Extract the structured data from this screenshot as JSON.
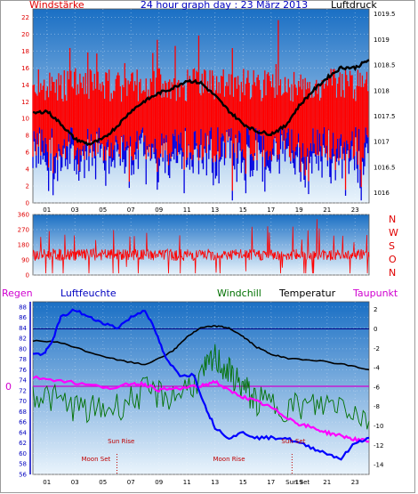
{
  "chart_data": [
    {
      "type": "line",
      "title": "24 hour graph day : 23 März 2013",
      "left_label": "Windstärke",
      "right_label": "Luftdruck",
      "x_ticks": [
        "01",
        "03",
        "05",
        "07",
        "09",
        "11",
        "13",
        "15",
        "17",
        "19",
        "21",
        "23"
      ],
      "y_left_ticks": [
        "0",
        "2",
        "4",
        "6",
        "8",
        "10",
        "12",
        "14",
        "16",
        "18",
        "20",
        "22"
      ],
      "y_left_range": [
        0,
        23
      ],
      "y_right_ticks": [
        "1016",
        "1016.5",
        "1017",
        "1017.5",
        "1018",
        "1018.5",
        "1019",
        "1019.5"
      ],
      "y_right_range": [
        1015.8,
        1019.6
      ],
      "pressure": [
        {
          "h": 0,
          "v": 1017.55
        },
        {
          "h": 1,
          "v": 1017.6
        },
        {
          "h": 2,
          "v": 1017.35
        },
        {
          "h": 3,
          "v": 1017.05
        },
        {
          "h": 4,
          "v": 1016.95
        },
        {
          "h": 5,
          "v": 1017.05
        },
        {
          "h": 6,
          "v": 1017.3
        },
        {
          "h": 7,
          "v": 1017.6
        },
        {
          "h": 8,
          "v": 1017.8
        },
        {
          "h": 9,
          "v": 1017.95
        },
        {
          "h": 10,
          "v": 1018.05
        },
        {
          "h": 11,
          "v": 1018.2
        },
        {
          "h": 12,
          "v": 1018.15
        },
        {
          "h": 13,
          "v": 1017.9
        },
        {
          "h": 14,
          "v": 1017.6
        },
        {
          "h": 15,
          "v": 1017.35
        },
        {
          "h": 16,
          "v": 1017.2
        },
        {
          "h": 17,
          "v": 1017.15
        },
        {
          "h": 18,
          "v": 1017.3
        },
        {
          "h": 19,
          "v": 1017.7
        },
        {
          "h": 20,
          "v": 1018.0
        },
        {
          "h": 21,
          "v": 1018.25
        },
        {
          "h": 22,
          "v": 1018.45
        },
        {
          "h": 23,
          "v": 1018.45
        },
        {
          "h": 24,
          "v": 1018.6
        }
      ],
      "wind_gust_typical": [
        12,
        14,
        16
      ],
      "wind_avg_typical": [
        5,
        7,
        9
      ]
    },
    {
      "type": "line",
      "right_labels": [
        "N",
        "W",
        "S",
        "O",
        "N"
      ],
      "y_ticks": [
        "0",
        "90",
        "180",
        "270",
        "360"
      ],
      "y_range": [
        0,
        360
      ],
      "direction_mean": 120
    },
    {
      "type": "line",
      "labels": {
        "rain": "Regen",
        "humidity": "Luftfeuchte",
        "windchill": "Windchill",
        "temperature": "Temperatur",
        "dewpoint": "Taupunkt"
      },
      "rain_zero_label": "0",
      "y_left_ticks": [
        "56",
        "58",
        "60",
        "62",
        "64",
        "66",
        "68",
        "70",
        "72",
        "74",
        "76",
        "78",
        "80",
        "82",
        "84",
        "86",
        "88"
      ],
      "y_left_range": [
        56,
        89
      ],
      "y_right_ticks": [
        "2",
        "0",
        "-2",
        "-4",
        "-6",
        "-8",
        "-10",
        "-12",
        "-14"
      ],
      "y_right_range": [
        -15,
        2.8
      ],
      "annotations": {
        "sun_rise": "Sun Rise",
        "sun_set": "Sun Set",
        "moon_set": "Moon Set",
        "moon_rise": "Moon Rise",
        "sun_set_axis": "Sun Set"
      },
      "humidity": [
        {
          "h": 0,
          "v": 79
        },
        {
          "h": 0.8,
          "v": 79
        },
        {
          "h": 1.3,
          "v": 81
        },
        {
          "h": 2,
          "v": 86
        },
        {
          "h": 3,
          "v": 87.5
        },
        {
          "h": 4,
          "v": 86
        },
        {
          "h": 5,
          "v": 85
        },
        {
          "h": 6,
          "v": 84
        },
        {
          "h": 7,
          "v": 86
        },
        {
          "h": 8,
          "v": 87.5
        },
        {
          "h": 8.8,
          "v": 83
        },
        {
          "h": 9.5,
          "v": 78
        },
        {
          "h": 10.5,
          "v": 75
        },
        {
          "h": 11.5,
          "v": 75
        },
        {
          "h": 12.3,
          "v": 69
        },
        {
          "h": 13,
          "v": 65
        },
        {
          "h": 14,
          "v": 63
        },
        {
          "h": 15,
          "v": 64
        },
        {
          "h": 16,
          "v": 63
        },
        {
          "h": 17,
          "v": 63
        },
        {
          "h": 18,
          "v": 63
        },
        {
          "h": 19,
          "v": 62
        },
        {
          "h": 20,
          "v": 61
        },
        {
          "h": 21,
          "v": 60
        },
        {
          "h": 22,
          "v": 59
        },
        {
          "h": 23,
          "v": 62
        },
        {
          "h": 24,
          "v": 63
        }
      ],
      "temperature": [
        {
          "h": 0,
          "v": -1.2
        },
        {
          "h": 2,
          "v": -1.4
        },
        {
          "h": 4,
          "v": -2.4
        },
        {
          "h": 6,
          "v": -3.2
        },
        {
          "h": 8,
          "v": -3.7
        },
        {
          "h": 10,
          "v": -2.3
        },
        {
          "h": 11,
          "v": -0.8
        },
        {
          "h": 12,
          "v": 0.1
        },
        {
          "h": 13,
          "v": 0.3
        },
        {
          "h": 14,
          "v": 0.1
        },
        {
          "h": 15,
          "v": -0.8
        },
        {
          "h": 16,
          "v": -1.9
        },
        {
          "h": 17,
          "v": -2.6
        },
        {
          "h": 18,
          "v": -3.0
        },
        {
          "h": 20,
          "v": -3.2
        },
        {
          "h": 22,
          "v": -3.6
        },
        {
          "h": 24,
          "v": -4.2
        }
      ],
      "dewpoint": [
        {
          "h": 0,
          "v": -5.0
        },
        {
          "h": 2,
          "v": -5.3
        },
        {
          "h": 4,
          "v": -5.8
        },
        {
          "h": 6,
          "v": -6.1
        },
        {
          "h": 7,
          "v": -5.6
        },
        {
          "h": 8,
          "v": -5.7
        },
        {
          "h": 9,
          "v": -6.3
        },
        {
          "h": 10,
          "v": -6.2
        },
        {
          "h": 12,
          "v": -5.9
        },
        {
          "h": 13,
          "v": -5.4
        },
        {
          "h": 14,
          "v": -6.4
        },
        {
          "h": 15,
          "v": -7.0
        },
        {
          "h": 16,
          "v": -7.5
        },
        {
          "h": 17,
          "v": -8.1
        },
        {
          "h": 18,
          "v": -9.0
        },
        {
          "h": 19,
          "v": -9.8
        },
        {
          "h": 20,
          "v": -10.2
        },
        {
          "h": 21,
          "v": -10.7
        },
        {
          "h": 22,
          "v": -11.0
        },
        {
          "h": 23,
          "v": -11.4
        },
        {
          "h": 24,
          "v": -11.6
        }
      ],
      "windchill": [
        {
          "h": 0,
          "v": -6.5
        },
        {
          "h": 2,
          "v": -7.5
        },
        {
          "h": 4,
          "v": -8.5
        },
        {
          "h": 6,
          "v": -8.0
        },
        {
          "h": 8,
          "v": -6.5
        },
        {
          "h": 10,
          "v": -7.0
        },
        {
          "h": 12,
          "v": -5.0
        },
        {
          "h": 13,
          "v": -3.0
        },
        {
          "h": 14,
          "v": -4.5
        },
        {
          "h": 15,
          "v": -6.0
        },
        {
          "h": 16,
          "v": -7.5
        },
        {
          "h": 18,
          "v": -8.0
        },
        {
          "h": 20,
          "v": -8.0
        },
        {
          "h": 22,
          "v": -7.5
        },
        {
          "h": 24,
          "v": -9.5
        }
      ],
      "temperature_guide": 0,
      "rain_guide": "0"
    }
  ]
}
